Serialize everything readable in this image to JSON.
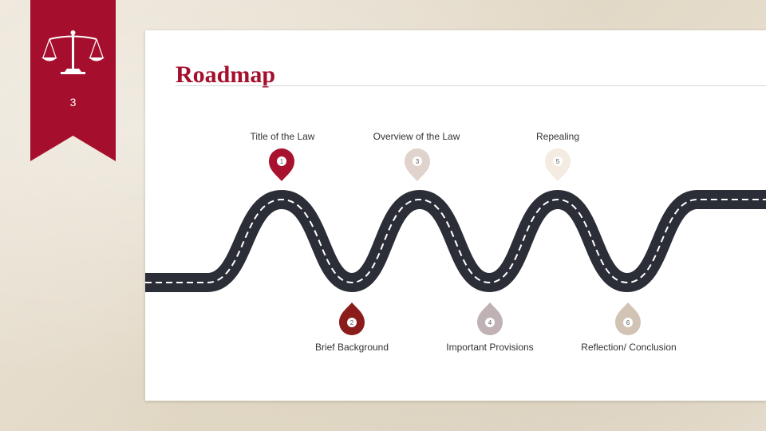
{
  "slide": {
    "page_number": "3",
    "title": "Roadmap"
  },
  "ribbon": {
    "color": "#a50f2d",
    "icon": "scales-of-justice-icon"
  },
  "road": {
    "color": "#2b2d37",
    "dash_color": "#ffffff"
  },
  "milestones": [
    {
      "number": "1",
      "label": "Title of the Law",
      "color": "#a8122e"
    },
    {
      "number": "2",
      "label": "Brief Background",
      "color": "#8b1c1c"
    },
    {
      "number": "3",
      "label": "Overview of the Law",
      "color": "#e0d3cd"
    },
    {
      "number": "4",
      "label": "Important Provisions",
      "color": "#bfb1b4"
    },
    {
      "number": "5",
      "label": "Repealing",
      "color": "#f4ece1"
    },
    {
      "number": "6",
      "label": "Reflection/ Conclusion",
      "color": "#d2c4b4"
    }
  ]
}
